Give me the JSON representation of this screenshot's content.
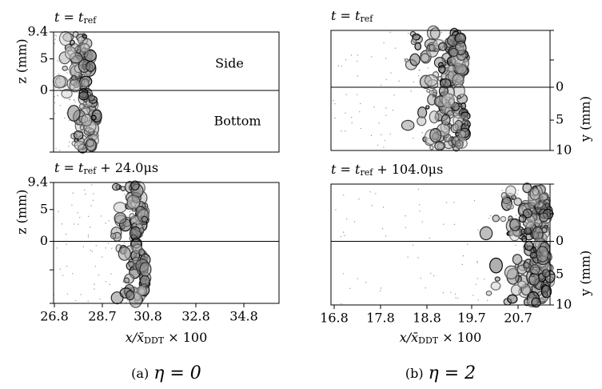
{
  "panels": [
    {
      "caption": {
        "label": "(a)",
        "math": "η = 0"
      },
      "x_label": {
        "main": "x/x̄",
        "sub": "DDT",
        "suffix": " × 100"
      },
      "x_ticks": [
        "26.8",
        "28.7",
        "30.8",
        "32.8",
        "34.8"
      ],
      "axis_label": "z (mm)",
      "axis_ticks": [
        "9.4",
        "5",
        "0"
      ],
      "annotations": [
        "Side",
        "Bottom"
      ],
      "plots": [
        {
          "time": {
            "base": "t = t",
            "sub": "ref",
            "suffix": ""
          }
        },
        {
          "time": {
            "base": "t = t",
            "sub": "ref",
            "suffix": " + 24.0μs"
          }
        }
      ]
    },
    {
      "caption": {
        "label": "(b)",
        "math": "η = 2"
      },
      "x_label": {
        "main": "x/x̄",
        "sub": "DDT",
        "suffix": " × 100"
      },
      "x_ticks": [
        "16.8",
        "17.8",
        "18.8",
        "19.7",
        "20.7"
      ],
      "axis_label": "y (mm)",
      "axis_ticks": [
        "0",
        "5",
        "10"
      ],
      "plots": [
        {
          "time": {
            "base": "t = t",
            "sub": "ref",
            "suffix": ""
          }
        },
        {
          "time": {
            "base": "t = t",
            "sub": "ref",
            "suffix": " + 104.0μs"
          }
        }
      ]
    }
  ]
}
